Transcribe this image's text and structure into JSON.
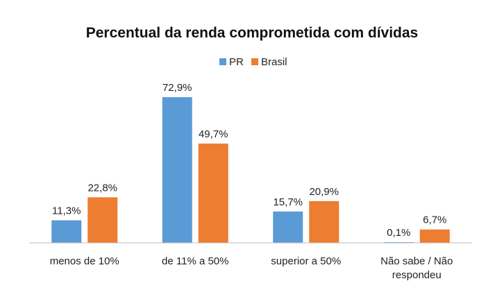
{
  "chart_data": {
    "type": "bar",
    "title": "Percentual da renda comprometida com dívidas",
    "categories": [
      [
        "menos de 10%"
      ],
      [
        "de 11% a 50%"
      ],
      [
        "superior a 50%"
      ],
      [
        "Não sabe / Não",
        "respondeu"
      ]
    ],
    "series": [
      {
        "name": "PR",
        "color": "#5B9BD5",
        "values": [
          11.3,
          72.9,
          15.7,
          0.1
        ],
        "labels": [
          "11,3%",
          "72,9%",
          "15,7%",
          "0,1%"
        ]
      },
      {
        "name": "Brasil",
        "color": "#ED7D31",
        "values": [
          22.8,
          49.7,
          20.9,
          6.7
        ],
        "labels": [
          "22,8%",
          "49,7%",
          "20,9%",
          "6,7%"
        ]
      }
    ],
    "ylim": [
      0,
      75
    ],
    "grid": false,
    "legend_position": "top-center",
    "xlabel": "",
    "ylabel": ""
  }
}
